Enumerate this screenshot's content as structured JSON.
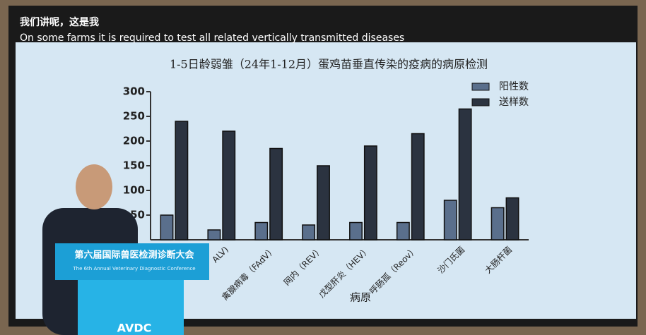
{
  "caption": {
    "line_cn": "我们讲呢，这是我",
    "line_en": "On some farms it is required to test all related vertically transmitted diseases"
  },
  "chart_data": {
    "type": "bar",
    "title": "1-5日龄弱雏（24年1-12月）蛋鸡苗垂直传染的疫病的病原检测",
    "x_label": "病原",
    "categories": [
      null,
      "ALV)",
      "禽腺病毒（FAdV）",
      "网内（REV）",
      "戊型肝炎（HEV）",
      "呼肠孤（Reov）",
      "沙门氏菌",
      "大肠杆菌"
    ],
    "series": [
      {
        "name": "阳性数",
        "color": "#5a6f8c",
        "values": [
          50,
          20,
          35,
          30,
          35,
          35,
          80,
          65
        ]
      },
      {
        "name": "送样数",
        "color": "#2b3340",
        "values": [
          240,
          220,
          185,
          150,
          190,
          215,
          265,
          85
        ]
      }
    ],
    "ylim": [
      0,
      300
    ],
    "yticks": [
      50,
      100,
      150,
      200,
      250,
      300
    ],
    "legend": "top-right"
  },
  "banner": {
    "title": "第六届国际兽医检测诊断大会",
    "subtitle": "The 6th Annual Veterinary Diagnostic Conference",
    "logo": "AVDC"
  }
}
